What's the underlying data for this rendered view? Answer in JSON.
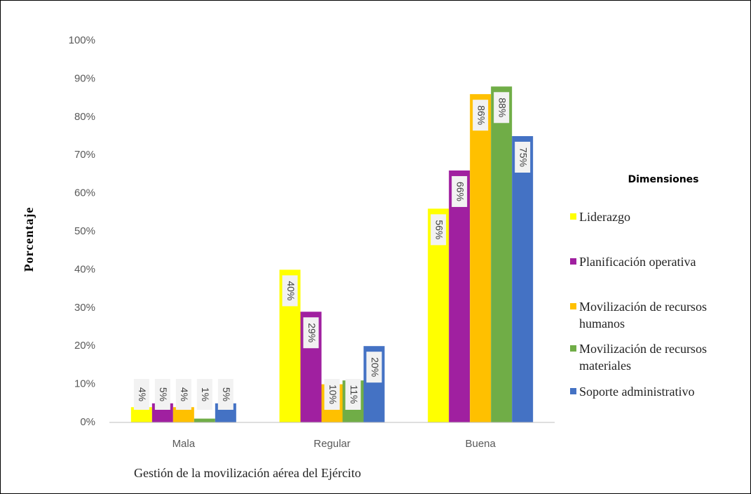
{
  "chart_data": {
    "type": "bar",
    "y_label": "Porcentaje",
    "x_label": "Gestión de la movilización aérea del Ejército",
    "legend_title": "Dimensiones",
    "categories": [
      "Mala",
      "Regular",
      "Buena"
    ],
    "series": [
      {
        "name": "Liderazgo",
        "color": "#ffff00",
        "values": [
          4,
          40,
          56
        ],
        "value_labels": [
          "4%",
          "40%",
          "56%"
        ]
      },
      {
        "name": "Planificación operativa",
        "color": "#a020a0",
        "values": [
          5,
          29,
          66
        ],
        "value_labels": [
          "5%",
          "29%",
          "66%"
        ]
      },
      {
        "name": "Movilización de recursos humanos",
        "color": "#ffc000",
        "values": [
          4,
          10,
          86
        ],
        "value_labels": [
          "4%",
          "10%",
          "86%"
        ]
      },
      {
        "name": "Movilización de recursos materiales",
        "color": "#70ad47",
        "values": [
          1,
          11,
          88
        ],
        "value_labels": [
          "1%",
          "11%",
          "88%"
        ]
      },
      {
        "name": "Soporte administrativo",
        "color": "#4472c4",
        "values": [
          5,
          20,
          75
        ],
        "value_labels": [
          "5%",
          "20%",
          "75%"
        ]
      }
    ],
    "ylim": [
      0,
      100
    ],
    "yticks": [
      {
        "value": 0,
        "label": "0%"
      },
      {
        "value": 10,
        "label": "10%"
      },
      {
        "value": 20,
        "label": "20%"
      },
      {
        "value": 30,
        "label": "30%"
      },
      {
        "value": 40,
        "label": "40%"
      },
      {
        "value": 50,
        "label": "50%"
      },
      {
        "value": 60,
        "label": "60%"
      },
      {
        "value": 70,
        "label": "70%"
      },
      {
        "value": 80,
        "label": "80%"
      },
      {
        "value": 90,
        "label": "90%"
      },
      {
        "value": 100,
        "label": "100%"
      }
    ],
    "grid": false,
    "legend": "right"
  }
}
